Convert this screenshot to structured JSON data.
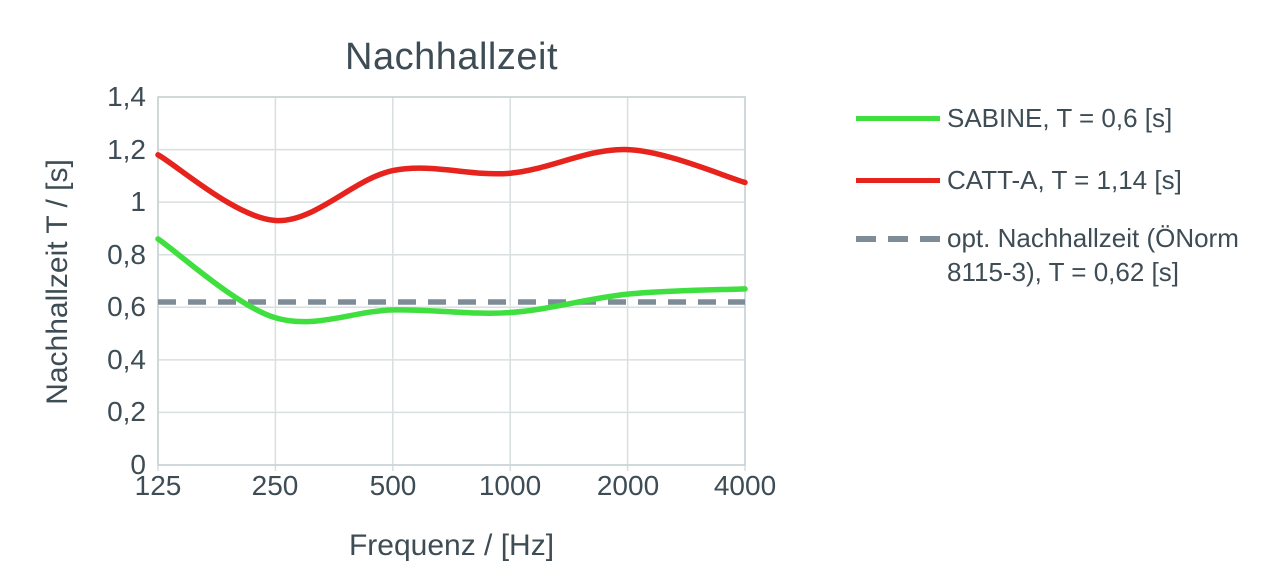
{
  "title": "Nachhallzeit",
  "y_axis": {
    "label": "Nachhallzeit T / [s]",
    "ticks": [
      "1,4",
      "1,2",
      "1",
      "0,8",
      "0,6",
      "0,4",
      "0,2",
      "0"
    ]
  },
  "x_axis": {
    "label": "Frequenz / [Hz]",
    "ticks": [
      "125",
      "250",
      "500",
      "1000",
      "2000",
      "4000"
    ]
  },
  "legend": {
    "items": [
      {
        "label": "SABINE, T = 0,6 [s]"
      },
      {
        "label": "CATT-A, T = 1,14 [s]"
      },
      {
        "label": "opt. Nachhallzeit (ÖNorm 8115-3), T = 0,62 [s]"
      }
    ]
  },
  "colors": {
    "sabine_green": "#3fdf3f",
    "catt_red": "#e6231c",
    "opt_gray": "#7e8c97",
    "gridline": "#d9dee0",
    "axis_border": "#c7d2d4",
    "text": "#3d4c55"
  },
  "chart_data": {
    "type": "line",
    "title": "Nachhallzeit",
    "xlabel": "Frequenz / [Hz]",
    "ylabel": "Nachhallzeit T / [s]",
    "x_scale": "log2",
    "categories": [
      125,
      250,
      500,
      1000,
      2000,
      4000
    ],
    "ylim": [
      0,
      1.4
    ],
    "ytick_step": 0.2,
    "grid": true,
    "legend_position": "right",
    "series": [
      {
        "name": "SABINE, T = 0,6 [s]",
        "color": "#3fdf3f",
        "style": "solid",
        "smoothed": true,
        "values": [
          0.86,
          0.56,
          0.59,
          0.58,
          0.65,
          0.67
        ]
      },
      {
        "name": "CATT-A, T = 1,14 [s]",
        "color": "#e6231c",
        "style": "solid",
        "smoothed": true,
        "values": [
          1.18,
          0.93,
          1.12,
          1.11,
          1.2,
          1.075
        ]
      },
      {
        "name": "opt. Nachhallzeit (ÖNorm 8115-3), T = 0,62 [s]",
        "color": "#7e8c97",
        "style": "dashed",
        "values": [
          0.62,
          0.62,
          0.62,
          0.62,
          0.62,
          0.62
        ]
      }
    ]
  }
}
